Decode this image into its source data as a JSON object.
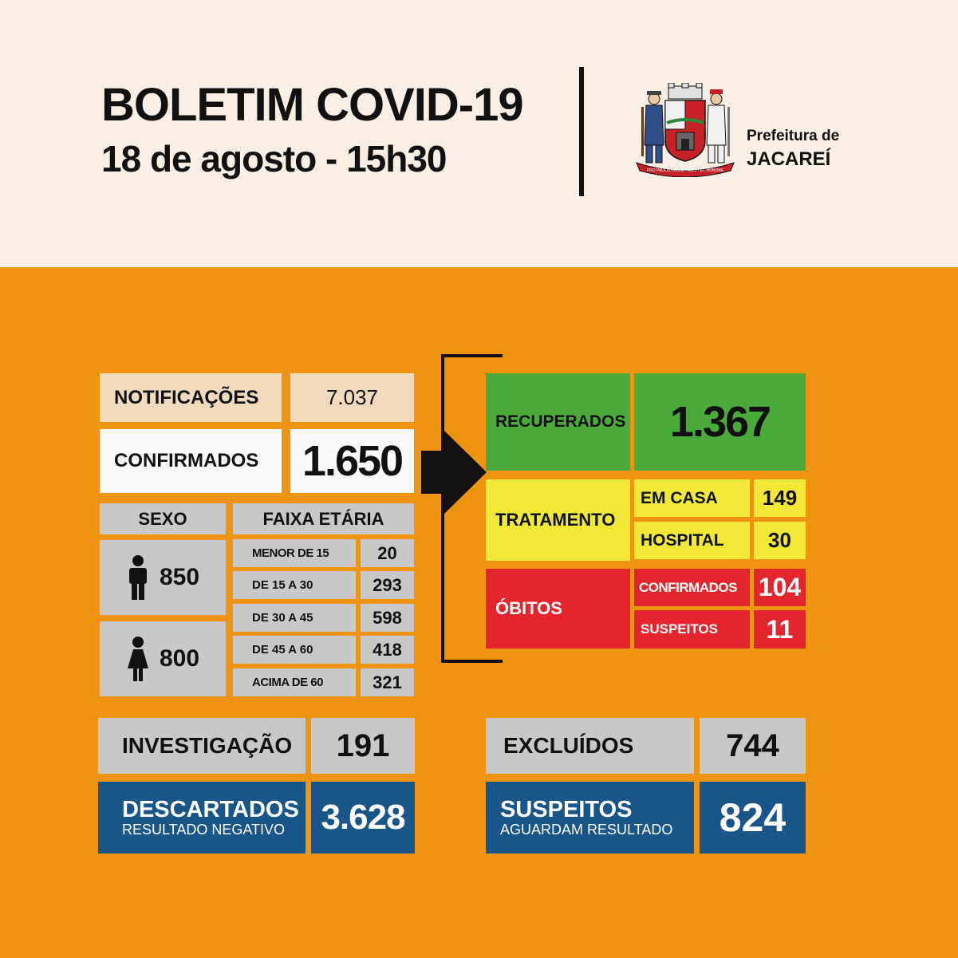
{
  "header": {
    "title": "BOLETIM COVID-19",
    "subtitle": "18 de agosto - 15h30",
    "org_line1": "Prefeitura de",
    "org_line2": "JACAREÍ",
    "crest_motto": "PRO PAULISTARUM - AMO - ET HONORE"
  },
  "colors": {
    "background": "#ef9411",
    "header_bg": "#f9efe5",
    "recovered": "#4aaa3a",
    "treatment": "#f3e737",
    "deaths": "#e4252d",
    "blue": "#18568a",
    "grey": "#c8c8c8"
  },
  "notificacoes": {
    "label": "NOTIFICAÇÕES",
    "value": "7.037"
  },
  "confirmados": {
    "label": "CONFIRMADOS",
    "value": "1.650"
  },
  "sexo": {
    "label": "SEXO",
    "male": {
      "icon": "male-person-icon",
      "value": "850"
    },
    "female": {
      "icon": "female-person-icon",
      "value": "800"
    }
  },
  "faixa": {
    "label": "FAIXA ETÁRIA",
    "rows": [
      {
        "label": "MENOR DE 15",
        "value": "20"
      },
      {
        "label": "DE 15 A 30",
        "value": "293"
      },
      {
        "label": "DE 30 A 45",
        "value": "598"
      },
      {
        "label": "DE 45 A 60",
        "value": "418"
      },
      {
        "label": "ACIMA DE 60",
        "value": "321"
      }
    ]
  },
  "recuperados": {
    "label": "RECUPERADOS",
    "value": "1.367"
  },
  "tratamento": {
    "label": "TRATAMENTO",
    "em_casa_label": "EM CASA",
    "em_casa_value": "149",
    "hospital_label": "HOSPITAL",
    "hospital_value": "30"
  },
  "obitos": {
    "label": "ÓBITOS",
    "confirmados_label": "CONFIRMADOS",
    "confirmados_value": "104",
    "suspeitos_label": "SUSPEITOS",
    "suspeitos_value": "11"
  },
  "investigacao": {
    "label": "INVESTIGAÇÃO",
    "value": "191"
  },
  "excluidos": {
    "label": "EXCLUÍDOS",
    "value": "744"
  },
  "descartados": {
    "label": "DESCARTADOS",
    "sublabel": "RESULTADO NEGATIVO",
    "value": "3.628"
  },
  "suspeitos": {
    "label": "SUSPEITOS",
    "sublabel": "AGUARDAM RESULTADO",
    "value": "824"
  }
}
